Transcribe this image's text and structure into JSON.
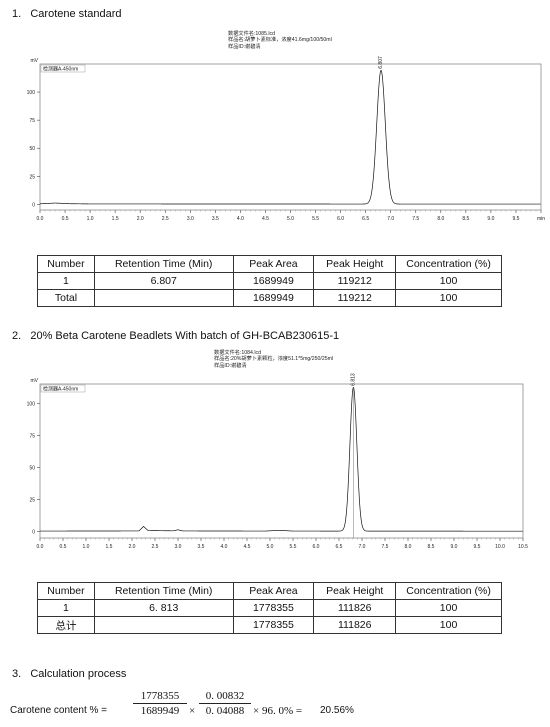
{
  "sections": [
    {
      "number": "1.",
      "title": "Carotene standard",
      "meta": [
        "数据文件名:1085.lcd",
        "样品名:胡萝卜素标准，浓度41.6mg/100/50ml",
        "样品ID:谢碧清"
      ],
      "chart_data": {
        "type": "line",
        "y_unit": "mV",
        "detector_label": "检测器A-450nm",
        "x_unit": "min",
        "xlim": [
          0.0,
          10.0
        ],
        "ylim": [
          -5,
          125
        ],
        "x_ticks": [
          "0.0",
          "0.5",
          "1.0",
          "1.5",
          "2.0",
          "2.5",
          "3.0",
          "3.5",
          "4.0",
          "4.5",
          "5.0",
          "5.5",
          "6.0",
          "6.5",
          "7.0",
          "7.5",
          "8.0",
          "8.5",
          "9.0",
          "9.5",
          "min"
        ],
        "y_ticks": [
          "0",
          "25",
          "50",
          "75",
          "100"
        ],
        "peaks": [
          {
            "retention_time": 6.807,
            "label": "6.807",
            "height": 119
          }
        ],
        "baseline": [
          [
            0.0,
            0.5
          ],
          [
            0.3,
            1.2
          ],
          [
            0.6,
            0.6
          ],
          [
            1.0,
            0.4
          ],
          [
            6.4,
            0.3
          ],
          [
            10.0,
            0.3
          ]
        ]
      },
      "table": {
        "headers": [
          "Number",
          "Retention Time (Min)",
          "Peak Area",
          "Peak Height",
          "Concentration (%)"
        ],
        "rows": [
          [
            "1",
            "6.807",
            "1689949",
            "119212",
            "100"
          ],
          [
            "Total",
            "",
            "1689949",
            "119212",
            "100"
          ]
        ]
      }
    },
    {
      "number": "2.",
      "title": "20% Beta Carotene Beadlets With batch of GH-BCAB230615-1",
      "meta": [
        "数据文件名:1084.lcd",
        "样品名:20%胡萝卜素颗粒，浓度51.1*5mg/250/25ml",
        "样品ID:谢碧清"
      ],
      "chart_data": {
        "type": "line",
        "y_unit": "mV",
        "detector_label": "检测器A-450nm",
        "x_unit": "min",
        "xlim": [
          0.0,
          10.5
        ],
        "ylim": [
          -5,
          115
        ],
        "x_ticks": [
          "0.0",
          "0.5",
          "1.0",
          "1.5",
          "2.0",
          "2.5",
          "3.0",
          "3.5",
          "4.0",
          "4.5",
          "5.0",
          "5.5",
          "6.0",
          "6.5",
          "7.0",
          "7.5",
          "8.0",
          "8.5",
          "9.0",
          "9.5",
          "10.0",
          "10.5"
        ],
        "y_ticks": [
          "0",
          "25",
          "50",
          "75",
          "100"
        ],
        "peaks": [
          {
            "retention_time": 6.813,
            "label": "6.813",
            "height": 112
          }
        ],
        "baseline": [
          [
            0.0,
            0.4
          ],
          [
            2.15,
            0.5
          ],
          [
            2.25,
            4.0
          ],
          [
            2.35,
            0.8
          ],
          [
            2.9,
            0.6
          ],
          [
            3.0,
            1.4
          ],
          [
            3.1,
            0.5
          ],
          [
            4.9,
            0.4
          ],
          [
            5.2,
            1.0
          ],
          [
            5.5,
            0.4
          ],
          [
            10.5,
            0.3
          ]
        ]
      },
      "table": {
        "headers": [
          "Number",
          "Retention Time (Min)",
          "Peak Area",
          "Peak Height",
          "Concentration (%)"
        ],
        "rows": [
          [
            "1",
            "6. 813",
            "1778355",
            "111826",
            "100"
          ],
          [
            "总计",
            "",
            "1778355",
            "111826",
            "100"
          ]
        ]
      }
    }
  ],
  "calculation": {
    "number": "3.",
    "title": "Calculation process",
    "label": "Carotene content % =",
    "frac1_num": "1778355",
    "frac1_den": "1689949",
    "times1": "×",
    "frac2_num": "0. 00832",
    "frac2_den": "0. 04088",
    "times2": "× 96. 0% =",
    "result": "20.56%"
  }
}
